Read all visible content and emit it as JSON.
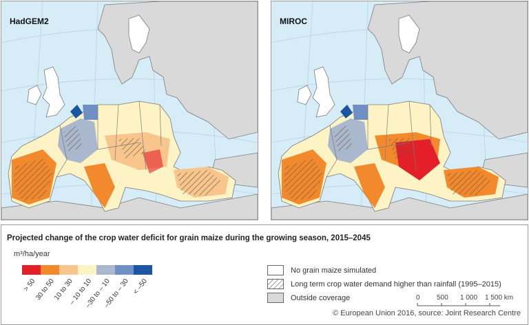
{
  "maps": [
    {
      "label": "HadGEM2"
    },
    {
      "label": "MIROC"
    }
  ],
  "legend": {
    "title": "Projected change of the crop water deficit for grain maize during the growing season, 2015–2045",
    "unit": "m³/ha/year",
    "classes": [
      {
        "label": "> 50",
        "color": "#e3202a"
      },
      {
        "label": "30 to 50",
        "color": "#f28a2d"
      },
      {
        "label": "10 to 30",
        "color": "#f8c68c"
      },
      {
        "label": "– 10 to 10",
        "color": "#fdf3c4"
      },
      {
        "label": "–30 to – 10",
        "color": "#a9b8cc"
      },
      {
        "label": "–50 to – 30",
        "color": "#6f8fc5"
      },
      {
        "label": "< –50",
        "color": "#1c56a3"
      }
    ],
    "categories": [
      {
        "label": "No grain maize simulated",
        "fill": "#ffffff",
        "hatched": false
      },
      {
        "label": "Long term crop water demand higher than rainfall (1995–2015)",
        "fill": "#ffffff",
        "hatched": true
      },
      {
        "label": "Outside coverage",
        "fill": "#d9d9d9",
        "hatched": false
      }
    ]
  },
  "scale": {
    "ticks": [
      "0",
      "500",
      "1 000",
      "1 500 km"
    ]
  },
  "source": "© European Union 2016, source: Joint Research Centre",
  "colors": {
    "sea": "#d6ecf7",
    "land_outside": "#d9d9d9",
    "border": "#7a7a7a"
  }
}
